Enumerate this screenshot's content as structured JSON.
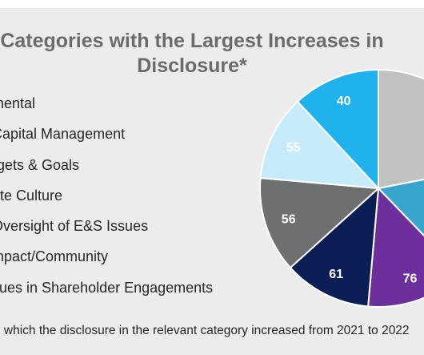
{
  "chart_data": {
    "type": "pie",
    "title": "Categories with the Largest Increases in Disclosure*",
    "categories": [
      "mental",
      "Capital Management",
      "rgets & Goals",
      "ate Culture",
      "Oversight of E&S Issues",
      "mpact/Community",
      "sues in Shareholder Engagements"
    ],
    "visible_labels": [
      "40",
      "55",
      "56",
      "61",
      "76"
    ],
    "slices": [
      {
        "label": "",
        "color": "#c0c1c1"
      },
      {
        "label": "",
        "color": "#37a6cf"
      },
      {
        "label": "76",
        "color": "#6c2f9c"
      },
      {
        "label": "61",
        "color": "#0a1e55"
      },
      {
        "label": "56",
        "color": "#6e6f71"
      },
      {
        "label": "55",
        "color": "#c6ebfb"
      },
      {
        "label": "40",
        "color": "#1fb2ec"
      }
    ]
  },
  "footnote": "n which the disclosure in the relevant category increased from 2021 to 2022"
}
